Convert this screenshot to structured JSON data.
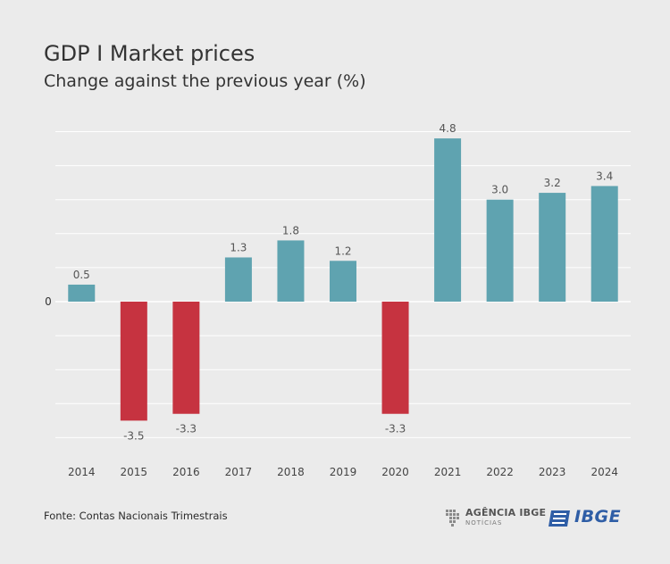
{
  "header": {
    "title": "GDP I Market prices",
    "subtitle": "Change against the previous year (%)"
  },
  "footer": {
    "source": "Fonte: Contas Nacionais Trimestrais",
    "logo_agencia_main": "AGÊNCIA IBGE",
    "logo_agencia_sub": "NOTÍCIAS",
    "logo_ibge": "IBGE"
  },
  "colors": {
    "positive": "#5fa3b0",
    "negative": "#c63340",
    "grid": "#ffffff",
    "background": "#ebebeb",
    "ibge_blue": "#2f5ea6"
  },
  "chart_data": {
    "type": "bar",
    "title": "GDP I Market prices",
    "subtitle": "Change against the previous year (%)",
    "xlabel": "",
    "ylabel": "",
    "categories": [
      "2014",
      "2015",
      "2016",
      "2017",
      "2018",
      "2019",
      "2020",
      "2021",
      "2022",
      "2023",
      "2024"
    ],
    "values": [
      0.5,
      -3.5,
      -3.3,
      1.3,
      1.8,
      1.2,
      -3.3,
      4.8,
      3.0,
      3.2,
      3.4
    ],
    "value_labels": [
      "0.5",
      "-3.5",
      "-3.3",
      "1.3",
      "1.8",
      "1.2",
      "-3.3",
      "4.8",
      "3.0",
      "3.2",
      "3.4"
    ],
    "y_tick_labels": [
      "0"
    ],
    "ylim": [
      -4.2,
      5.2
    ],
    "grid": true,
    "legend": "none"
  }
}
